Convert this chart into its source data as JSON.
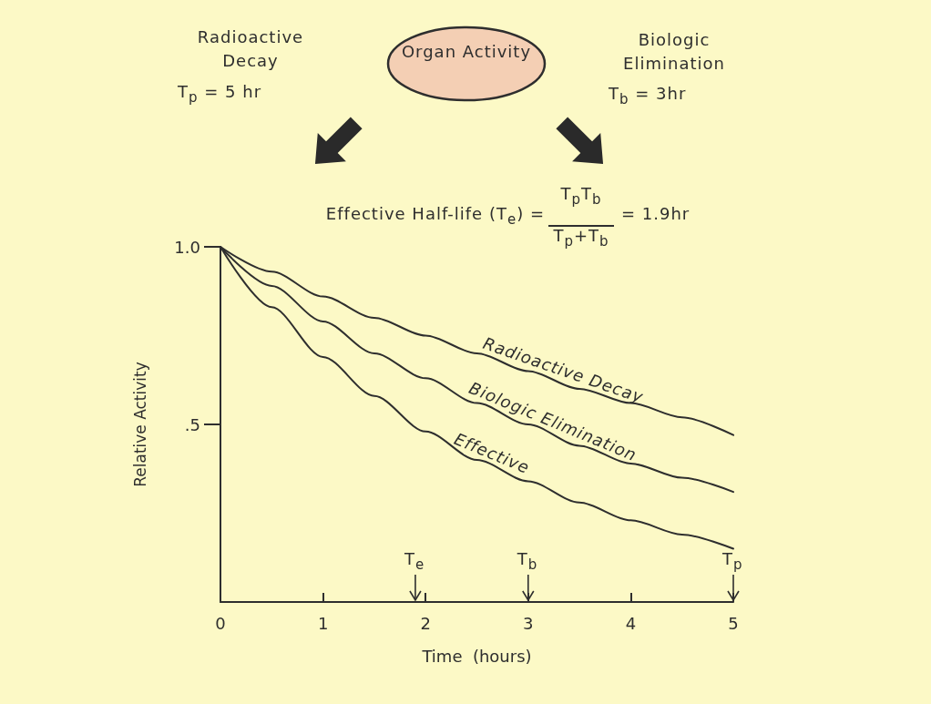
{
  "chart_data": {
    "type": "line",
    "xlabel": "Time  (hours)",
    "ylabel": "Relative Activity",
    "x": [
      0,
      0.5,
      1,
      1.5,
      2,
      2.5,
      3,
      3.5,
      4,
      4.5,
      5
    ],
    "series": [
      {
        "name": "Radioactive Decay",
        "color": "#2e2e2e",
        "values": [
          1,
          0.93,
          0.86,
          0.8,
          0.75,
          0.7,
          0.65,
          0.6,
          0.56,
          0.52,
          0.47
        ]
      },
      {
        "name": "Biologic Elimination",
        "color": "#2e2e2e",
        "values": [
          1,
          0.89,
          0.79,
          0.7,
          0.63,
          0.56,
          0.5,
          0.44,
          0.39,
          0.35,
          0.31
        ]
      },
      {
        "name": "Effective",
        "color": "#2e2e2e",
        "values": [
          1,
          0.83,
          0.69,
          0.58,
          0.48,
          0.4,
          0.34,
          0.28,
          0.23,
          0.19,
          0.15
        ]
      }
    ],
    "xlim": [
      0,
      5
    ],
    "xticks": [
      0,
      1,
      2,
      3,
      4,
      5
    ],
    "ylim": [
      0,
      1
    ],
    "yticks": [
      {
        "value": 0.5,
        "label": ".5"
      },
      {
        "value": 1,
        "label": "1.0"
      }
    ],
    "grid": false,
    "legend": false,
    "marker": "none",
    "line_style": "solid",
    "ref_lines": [
      {
        "axis": "x",
        "value": 1.9,
        "label": "T$_{e}$"
      },
      {
        "axis": "x",
        "value": 3,
        "label": "T$_{b}$"
      },
      {
        "axis": "x",
        "value": 5,
        "label": "T$_{p}$"
      }
    ],
    "annotations": [
      "Radioactive Decay",
      "T$_{p}$ = 5 hr",
      "Organ Activity",
      "Biologic Elimination",
      "T$_{b}$ = 3hr",
      "Effective Half-life (T$_{e}$) =",
      "T$_{p}$T$_{b}$",
      "T$_{p}$+T$_{b}$",
      "= 1.9hr"
    ]
  }
}
